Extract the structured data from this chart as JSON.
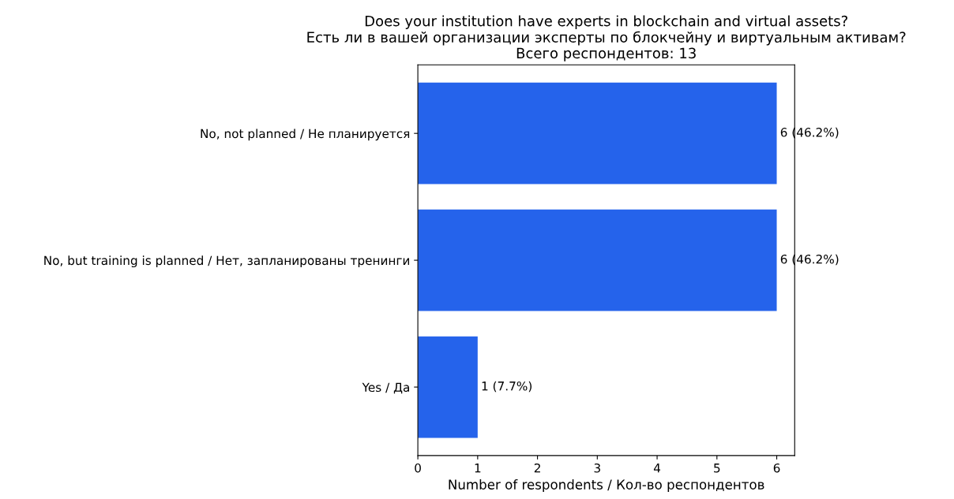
{
  "chart_data": {
    "type": "bar",
    "orientation": "horizontal",
    "title": "Does your institution have experts in blockchain and virtual assets?\nЕсть ли в вашей организации эксперты по блокчейну и виртуальным активам?\nВсего респондентов: 13",
    "xlabel": "Number of respondents / Кол-во респондентов",
    "categories": [
      "No, not planned / Не планируется",
      "No, but training is planned / Нет, запланированы тренинги",
      "Yes / Да"
    ],
    "values": [
      6,
      6,
      1
    ],
    "value_labels": [
      "6 (46.2%)",
      "6 (46.2%)",
      "1 (7.7%)"
    ],
    "color": "#2563eb",
    "xlim": [
      0,
      6.3
    ],
    "xticks": [
      0,
      1,
      2,
      3,
      4,
      5,
      6
    ],
    "grid": false
  }
}
